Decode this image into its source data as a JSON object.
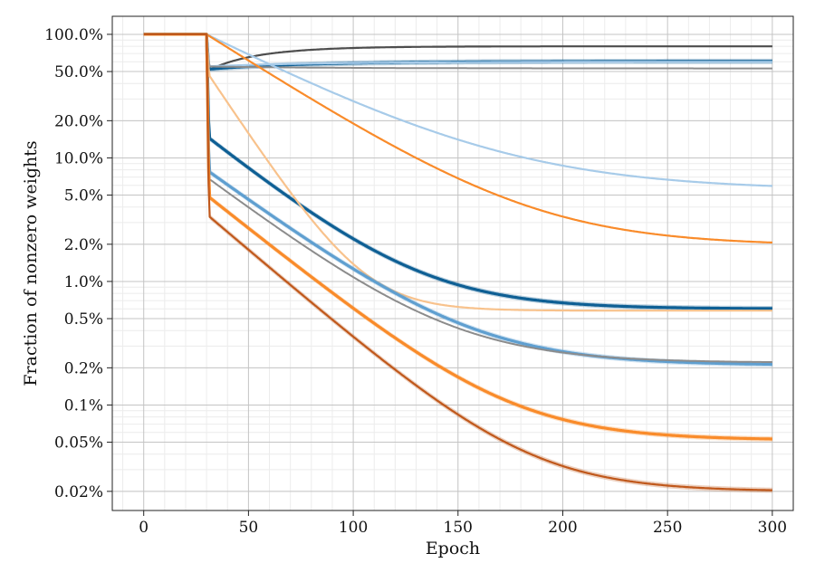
{
  "chart_data": {
    "type": "line",
    "xlabel": "Epoch",
    "ylabel": "Fraction of nonzero weights",
    "xlim": [
      -15,
      310
    ],
    "ylim": [
      0.014,
      140
    ],
    "y_scale": "log",
    "grid": "major and minor",
    "x_ticks": [
      0,
      50,
      100,
      150,
      200,
      250,
      300
    ],
    "x_tick_labels": [
      "0",
      "50",
      "100",
      "150",
      "200",
      "250",
      "300"
    ],
    "y_ticks": [
      100,
      50,
      20,
      10,
      5,
      2,
      1,
      0.5,
      0.2,
      0.1,
      0.05,
      0.02
    ],
    "y_tick_labels": [
      "100.0%",
      "50.0%",
      "20.0%",
      "10.0%",
      "5.0%",
      "2.0%",
      "1.0%",
      "0.5%",
      "0.2%",
      "0.1%",
      "0.05%",
      "0.02%"
    ],
    "colors": {
      "dark_gray": "#4d4d4d",
      "mid_gray": "#8c8c8c",
      "light_gray": "#c2c2c2",
      "dark_blue": "#0e5f94",
      "mid_blue": "#5f9fd0",
      "light_blue": "#a7cbe9",
      "dark_orange": "#c0581b",
      "mid_orange": "#f98b2a",
      "light_orange": "#f8c28c"
    },
    "series": [
      {
        "color": "#4d4d4d",
        "width": 2.2,
        "band": false,
        "start": 50,
        "end": 80,
        "k": 28
      },
      {
        "color": "#0e5f94",
        "width": 3.0,
        "band": true,
        "start": 52,
        "end": 60.5,
        "k": 50
      },
      {
        "color": "#a7cbe9",
        "width": 2.2,
        "band": false,
        "start": 55,
        "end": 60,
        "k": 55
      },
      {
        "color": "#8c8c8c",
        "width": 2.0,
        "band": false,
        "start": 55,
        "end": 53,
        "k": 55
      },
      {
        "color": "#a7cbe9",
        "width": 2.2,
        "band": false,
        "start": 100,
        "end": 5.5,
        "k": 40,
        "tail": 50
      },
      {
        "color": "#f98b2a",
        "width": 2.2,
        "band": false,
        "start": 100,
        "end": 1.95,
        "k": 28,
        "tail": 40
      },
      {
        "color": "#0e5f94",
        "width": 3.2,
        "band": true,
        "start": 15,
        "end": 0.6,
        "k": 32
      },
      {
        "color": "#f8c28c",
        "width": 2.2,
        "band": false,
        "start": 50,
        "end": 0.58,
        "k": 17
      },
      {
        "color": "#5f9fd0",
        "width": 3.2,
        "band": true,
        "start": 8,
        "end": 0.21,
        "k": 35
      },
      {
        "color": "#8c8c8c",
        "width": 2.0,
        "band": false,
        "start": 7,
        "end": 0.22,
        "k": 34
      },
      {
        "color": "#f98b2a",
        "width": 3.2,
        "band": true,
        "start": 5,
        "end": 0.052,
        "k": 32
      },
      {
        "color": "#c0581b",
        "width": 2.2,
        "band": true,
        "start": 3.5,
        "end": 0.02,
        "k": 30
      }
    ]
  }
}
